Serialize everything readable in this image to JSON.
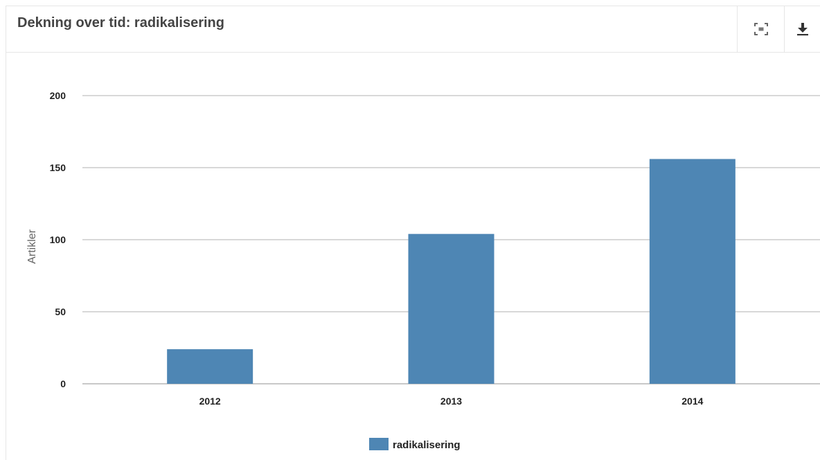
{
  "panel": {
    "title": "Dekning over tid: radikalisering"
  },
  "toolbar": {
    "expand_icon": "fullscreen-icon",
    "download_icon": "download-icon"
  },
  "chart_data": {
    "type": "bar",
    "categories": [
      "2012",
      "2013",
      "2014"
    ],
    "series": [
      {
        "name": "radikalisering",
        "values": [
          24,
          104,
          156
        ],
        "color": "#4e86b4"
      }
    ],
    "title": "",
    "xlabel": "",
    "ylabel": "Artikler",
    "ylim": [
      0,
      200
    ],
    "yticks": [
      "0",
      "50",
      "100",
      "150",
      "200"
    ],
    "grid": true,
    "legend": "bottom-center"
  }
}
